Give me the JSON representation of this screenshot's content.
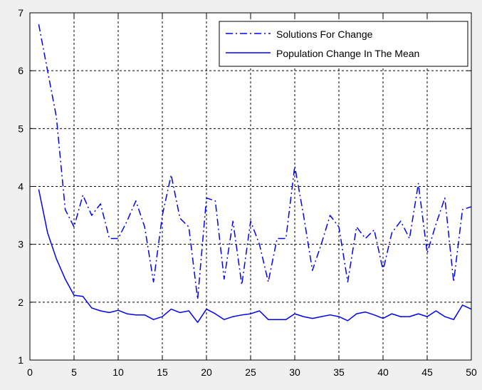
{
  "chart_data": {
    "type": "line",
    "title": "",
    "xlabel": "",
    "ylabel": "",
    "xlim": [
      0,
      50
    ],
    "ylim": [
      1,
      7
    ],
    "xticks": [
      0,
      5,
      10,
      15,
      20,
      25,
      30,
      35,
      40,
      45,
      50
    ],
    "yticks": [
      1,
      2,
      3,
      4,
      5,
      6,
      7
    ],
    "xtick_labels": [
      "0",
      "5",
      "10",
      "15",
      "20",
      "25",
      "30",
      "35",
      "40",
      "45",
      "50"
    ],
    "ytick_labels": [
      "1",
      "2",
      "3",
      "4",
      "5",
      "6",
      "7"
    ],
    "grid": true,
    "legend_position": "top-right",
    "series": [
      {
        "name": "Solutions For Change",
        "line_style": "dash-dot",
        "color": "#0000ff",
        "x": [
          1,
          2,
          3,
          4,
          5,
          6,
          7,
          8,
          9,
          10,
          11,
          12,
          13,
          14,
          15,
          16,
          17,
          18,
          19,
          20,
          21,
          22,
          23,
          24,
          25,
          26,
          27,
          28,
          29,
          30,
          31,
          32,
          33,
          34,
          35,
          36,
          37,
          38,
          39,
          40,
          41,
          42,
          43,
          44,
          45,
          46,
          47,
          48,
          49,
          50
        ],
        "y": [
          6.8,
          6.0,
          5.2,
          3.6,
          3.3,
          3.85,
          3.5,
          3.7,
          3.1,
          3.1,
          3.4,
          3.75,
          3.3,
          2.35,
          3.5,
          4.2,
          3.45,
          3.3,
          2.05,
          3.8,
          3.75,
          2.4,
          3.4,
          2.3,
          3.4,
          3.0,
          2.35,
          3.1,
          3.1,
          4.35,
          3.5,
          2.55,
          3.0,
          3.5,
          3.3,
          2.35,
          3.3,
          3.1,
          3.25,
          2.55,
          3.2,
          3.4,
          3.1,
          4.05,
          2.85,
          3.35,
          3.8,
          2.35,
          3.6,
          3.65
        ]
      },
      {
        "name": "Population Change In The Mean",
        "line_style": "solid",
        "color": "#0000ff",
        "x": [
          1,
          2,
          3,
          4,
          5,
          6,
          7,
          8,
          9,
          10,
          11,
          12,
          13,
          14,
          15,
          16,
          17,
          18,
          19,
          20,
          21,
          22,
          23,
          24,
          25,
          26,
          27,
          28,
          29,
          30,
          31,
          32,
          33,
          34,
          35,
          36,
          37,
          38,
          39,
          40,
          41,
          42,
          43,
          44,
          45,
          46,
          47,
          48,
          49,
          50
        ],
        "y": [
          3.95,
          3.2,
          2.75,
          2.4,
          2.12,
          2.1,
          1.9,
          1.85,
          1.82,
          1.86,
          1.8,
          1.78,
          1.78,
          1.7,
          1.75,
          1.88,
          1.82,
          1.85,
          1.65,
          1.88,
          1.8,
          1.7,
          1.75,
          1.78,
          1.8,
          1.85,
          1.7,
          1.7,
          1.7,
          1.8,
          1.75,
          1.72,
          1.75,
          1.78,
          1.75,
          1.68,
          1.8,
          1.83,
          1.78,
          1.72,
          1.8,
          1.75,
          1.75,
          1.8,
          1.75,
          1.85,
          1.75,
          1.7,
          1.95,
          1.88
        ]
      }
    ]
  }
}
